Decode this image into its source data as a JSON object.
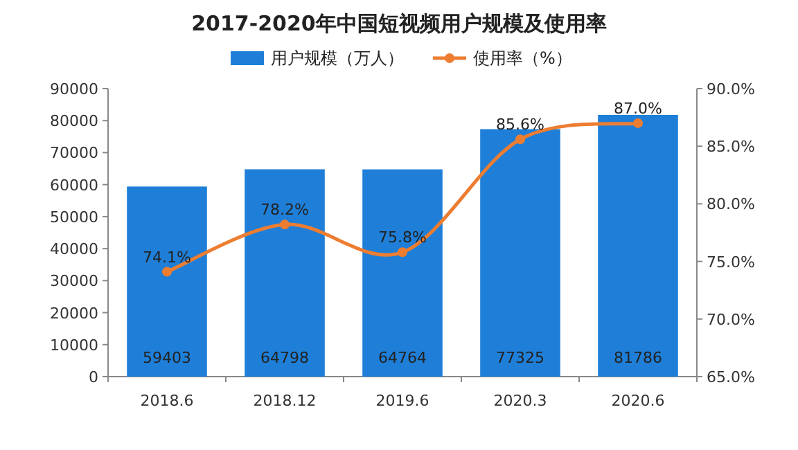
{
  "chart_data": {
    "type": "bar",
    "title": "2017-2020年中国短视频用户规模及使用率",
    "categories": [
      "2018.6",
      "2018.12",
      "2019.6",
      "2020.3",
      "2020.6"
    ],
    "series": [
      {
        "name": "用户规模（万人）",
        "color": "#1f7fd8",
        "values": [
          59403,
          64798,
          64764,
          77325,
          81786
        ],
        "value_labels": [
          "59403",
          "64798",
          "64764",
          "77325",
          "81786"
        ]
      },
      {
        "name": "使用率（%）",
        "type": "line",
        "axis": "y2",
        "color": "#ed7d31",
        "marker": "circle",
        "values": [
          74.1,
          78.2,
          75.8,
          85.6,
          87.0
        ],
        "value_labels": [
          "74.1%",
          "78.2%",
          "75.8%",
          "85.6%",
          "87.0%"
        ]
      }
    ],
    "ylim": [
      0,
      90000
    ],
    "yticks": [
      0,
      10000,
      20000,
      30000,
      40000,
      50000,
      60000,
      70000,
      80000,
      90000
    ],
    "y2lim": [
      65,
      90
    ],
    "y2ticks": [
      {
        "value": 65,
        "label": "65.0%"
      },
      {
        "value": 70,
        "label": "70.0%"
      },
      {
        "value": 75,
        "label": "75.0%"
      },
      {
        "value": 80,
        "label": "80.0%"
      },
      {
        "value": 85,
        "label": "85.0%"
      },
      {
        "value": 90,
        "label": "90.0%"
      }
    ],
    "legend": "top",
    "grid": false
  }
}
